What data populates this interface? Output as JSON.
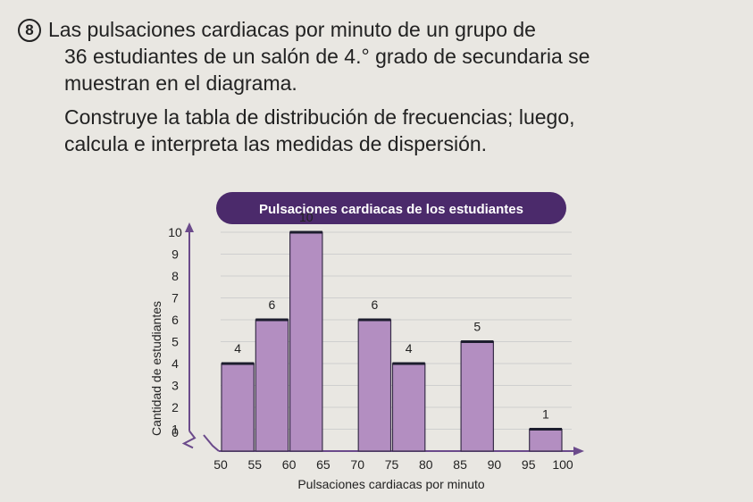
{
  "problem": {
    "number": "8",
    "line1": "Las pulsaciones cardiacas por minuto de un grupo de",
    "line2": "36 estudiantes de un salón de 4.° grado de secundaria se",
    "line3": "muestran en el diagrama.",
    "line4": "Construye la tabla de distribución de frecuencias; luego,",
    "line5": "calcula e interpreta las medidas de dispersión."
  },
  "chart_data": {
    "type": "bar",
    "title": "Pulsaciones cardiacas de los estudiantes",
    "xlabel": "Pulsaciones cardiacas por minuto",
    "ylabel": "Cantidad de estudiantes",
    "x_ticks": [
      "50",
      "55",
      "60",
      "65",
      "70",
      "75",
      "80",
      "85",
      "90",
      "95",
      "100"
    ],
    "y_ticks": [
      "0",
      "1",
      "2",
      "3",
      "4",
      "5",
      "6",
      "7",
      "8",
      "9",
      "10"
    ],
    "bins": [
      {
        "from": 50,
        "to": 55,
        "value": 4
      },
      {
        "from": 55,
        "to": 60,
        "value": 6
      },
      {
        "from": 60,
        "to": 65,
        "value": 10
      },
      {
        "from": 70,
        "to": 75,
        "value": 6
      },
      {
        "from": 75,
        "to": 80,
        "value": 4
      },
      {
        "from": 85,
        "to": 90,
        "value": 5
      },
      {
        "from": 95,
        "to": 100,
        "value": 1
      }
    ],
    "ylim": [
      0,
      10
    ],
    "xlim": [
      50,
      100
    ],
    "bar_color": "#b38ec1",
    "title_bg": "#4b2a6b"
  }
}
